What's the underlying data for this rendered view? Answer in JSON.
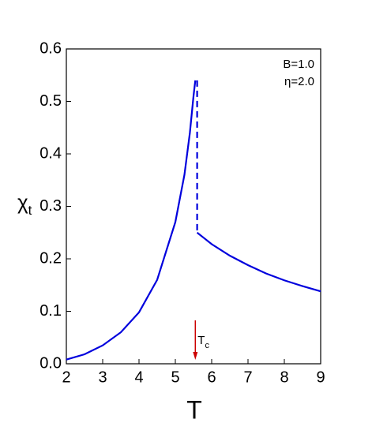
{
  "chart_data": {
    "type": "line",
    "x_label": "T",
    "y_label": {
      "symbol": "χ",
      "sub": "t"
    },
    "xlim": [
      2,
      9
    ],
    "ylim": [
      0,
      0.6
    ],
    "xticks": [
      2,
      3,
      4,
      5,
      6,
      7,
      8,
      9
    ],
    "yticks": [
      {
        "value": 0,
        "label": "0.0"
      },
      0.1,
      0.2,
      0.3,
      0.4,
      0.5,
      0.6
    ],
    "annotations": [
      "B=1.0",
      "η=2.0"
    ],
    "critical_marker": {
      "x": 5.55,
      "label": "T",
      "sub": "c",
      "color": "#cc0000"
    },
    "series": [
      {
        "color": "#0000dd",
        "dash": false,
        "x": [
          2,
          2.5,
          3,
          3.5,
          4,
          4.5,
          5,
          5.25,
          5.4,
          5.5,
          5.55
        ],
        "values": [
          0.008,
          0.018,
          0.035,
          0.06,
          0.098,
          0.16,
          0.27,
          0.36,
          0.44,
          0.51,
          0.54
        ]
      },
      {
        "color": "#0000dd",
        "dash": true,
        "x": [
          5.6,
          5.6
        ],
        "values": [
          0.54,
          0.25
        ]
      },
      {
        "color": "#0000dd",
        "dash": false,
        "x": [
          5.6,
          6,
          6.5,
          7,
          7.5,
          8,
          8.5,
          9
        ],
        "values": [
          0.25,
          0.228,
          0.206,
          0.188,
          0.172,
          0.159,
          0.148,
          0.138
        ]
      }
    ]
  }
}
